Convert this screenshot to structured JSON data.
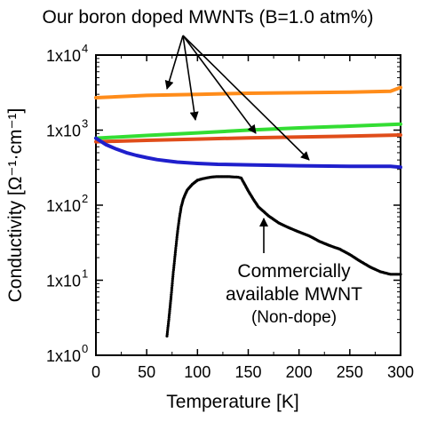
{
  "chart_data": {
    "type": "line",
    "x_axis": {
      "label": "Temperature [K]",
      "range": [
        0,
        300
      ],
      "ticks": [
        0,
        50,
        100,
        150,
        200,
        250,
        300
      ]
    },
    "y_axis": {
      "label": "Conductivity [Ω⁻¹·cm⁻¹]",
      "scale": "log",
      "range": [
        1,
        10000
      ],
      "ticks": [
        {
          "value": 1,
          "base": "1x10",
          "exp": "0"
        },
        {
          "value": 10,
          "base": "1x10",
          "exp": "1"
        },
        {
          "value": 100,
          "base": "1x10",
          "exp": "2"
        },
        {
          "value": 1000,
          "base": "1x10",
          "exp": "3"
        },
        {
          "value": 10000,
          "base": "1x10",
          "exp": "4"
        }
      ]
    },
    "grid": false,
    "series": [
      {
        "color": "#ff8c1a",
        "style": "line",
        "x": [
          0,
          50,
          100,
          150,
          200,
          250,
          290,
          300
        ],
        "y": [
          2700,
          2900,
          3000,
          3100,
          3150,
          3200,
          3300,
          3700
        ]
      },
      {
        "color": "#33dd33",
        "style": "line",
        "x": [
          0,
          50,
          100,
          150,
          200,
          250,
          300
        ],
        "y": [
          780,
          850,
          920,
          1000,
          1070,
          1130,
          1200
        ]
      },
      {
        "color": "#e04d1a",
        "style": "line",
        "x": [
          0,
          50,
          100,
          150,
          200,
          250,
          300
        ],
        "y": [
          700,
          730,
          760,
          790,
          810,
          830,
          860
        ]
      },
      {
        "color": "#1f1fcc",
        "style": "line",
        "x": [
          0,
          10,
          20,
          30,
          40,
          50,
          60,
          70,
          80,
          100,
          120,
          150,
          200,
          250,
          290,
          300
        ],
        "y": [
          780,
          640,
          560,
          500,
          460,
          430,
          405,
          390,
          375,
          360,
          350,
          345,
          335,
          330,
          330,
          320
        ]
      },
      {
        "color": "#000000",
        "style": "points",
        "x": [
          70,
          72,
          74,
          76,
          78,
          80,
          82,
          84,
          86,
          88,
          90,
          95,
          100,
          105,
          110,
          115,
          120,
          125,
          130,
          135,
          140,
          143,
          146,
          150,
          155,
          160,
          170,
          180,
          190,
          200,
          210,
          220,
          230,
          240,
          250,
          260,
          270,
          280,
          290,
          300
        ],
        "y": [
          1.8,
          3.2,
          6,
          12,
          22,
          40,
          65,
          95,
          120,
          140,
          160,
          190,
          215,
          225,
          232,
          238,
          240,
          240,
          240,
          238,
          236,
          230,
          195,
          155,
          120,
          95,
          72,
          58,
          50,
          44,
          39,
          33,
          29,
          26,
          22,
          18,
          15,
          13,
          12,
          12
        ]
      }
    ],
    "annotations": {
      "top_label": "Our boron doped MWNTs (B=1.0 atm%)",
      "bottom_label_lines": [
        "Commercially",
        "available MWNT",
        "(Non-dope)"
      ]
    }
  }
}
